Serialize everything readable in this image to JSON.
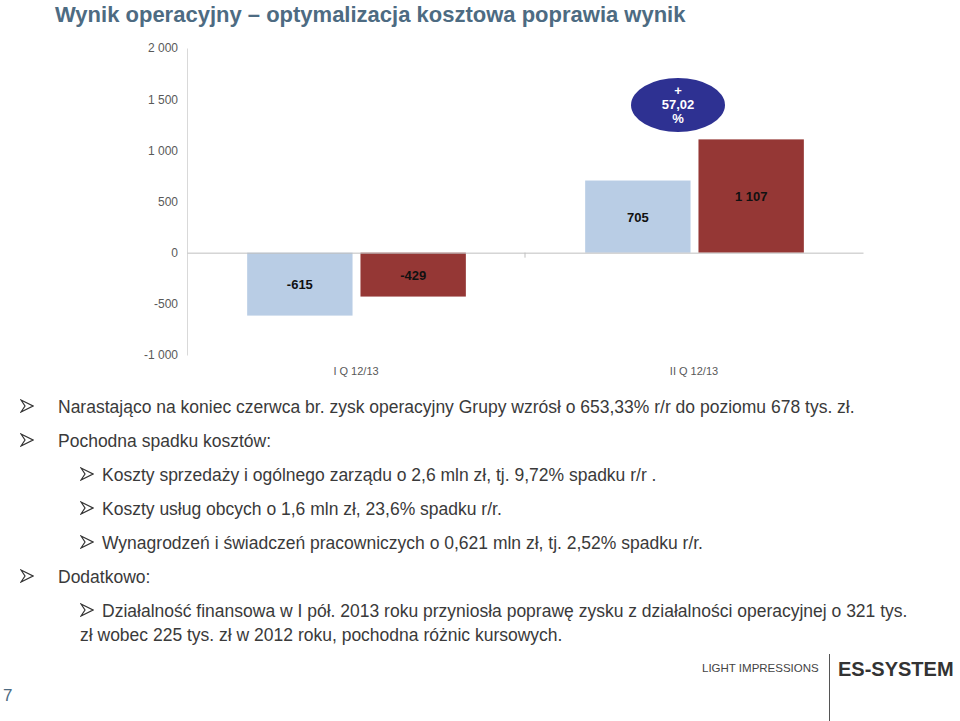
{
  "chart_data": {
    "type": "bar",
    "title": "Wynik operacyjny – optymalizacja kosztowa poprawia wynik",
    "categories": [
      "I Q 12/13",
      "II Q 12/13"
    ],
    "series": [
      {
        "color": "#b9cde5",
        "values": [
          -615,
          705
        ]
      },
      {
        "color": "#953735",
        "values": [
          -429,
          1107
        ],
        "value_labels": [
          "-429",
          "1 107"
        ]
      }
    ],
    "ylim": [
      -1000,
      2000
    ],
    "yticks": [
      {
        "value": -1000,
        "label": "-1 000"
      },
      -500,
      0,
      500,
      {
        "value": 1000,
        "label": "1 000"
      },
      {
        "value": 1500,
        "label": "1 500"
      },
      {
        "value": 2000,
        "label": "2 000"
      }
    ],
    "grid": false,
    "data_labels": true,
    "annotations": [
      "+ 57,02 %"
    ]
  },
  "slide": {
    "bullets": [
      {
        "text": "Narastająco na koniec czerwca br. zysk operacyjny Grupy wzrósł o 653,33% r/r do poziomu 678 tys. zł."
      },
      {
        "text": "Pochodna spadku kosztów:",
        "items": [
          "Koszty sprzedaży i ogólnego zarządu o 2,6 mln zł, tj. 9,72% spadku r/r .",
          "Koszty usług obcych o 1,6 mln zł, 23,6% spadku r/r.",
          "Wynagrodzeń i świadczeń pracowniczych o 0,621 mln zł, tj. 2,52% spadku r/r."
        ]
      },
      {
        "text": "Dodatkowo:",
        "items": [
          "Działalność finansowa w I pół. 2013 roku przyniosła poprawę zysku z działalności operacyjnej o 321 tys. zł wobec 225 tys. zł w 2012 roku, pochodna różnic kursowych."
        ]
      }
    ],
    "page_number": "7",
    "footer_logos": [
      "LIGHT IMPRESSIONS",
      "ES-SYSTEM"
    ]
  }
}
